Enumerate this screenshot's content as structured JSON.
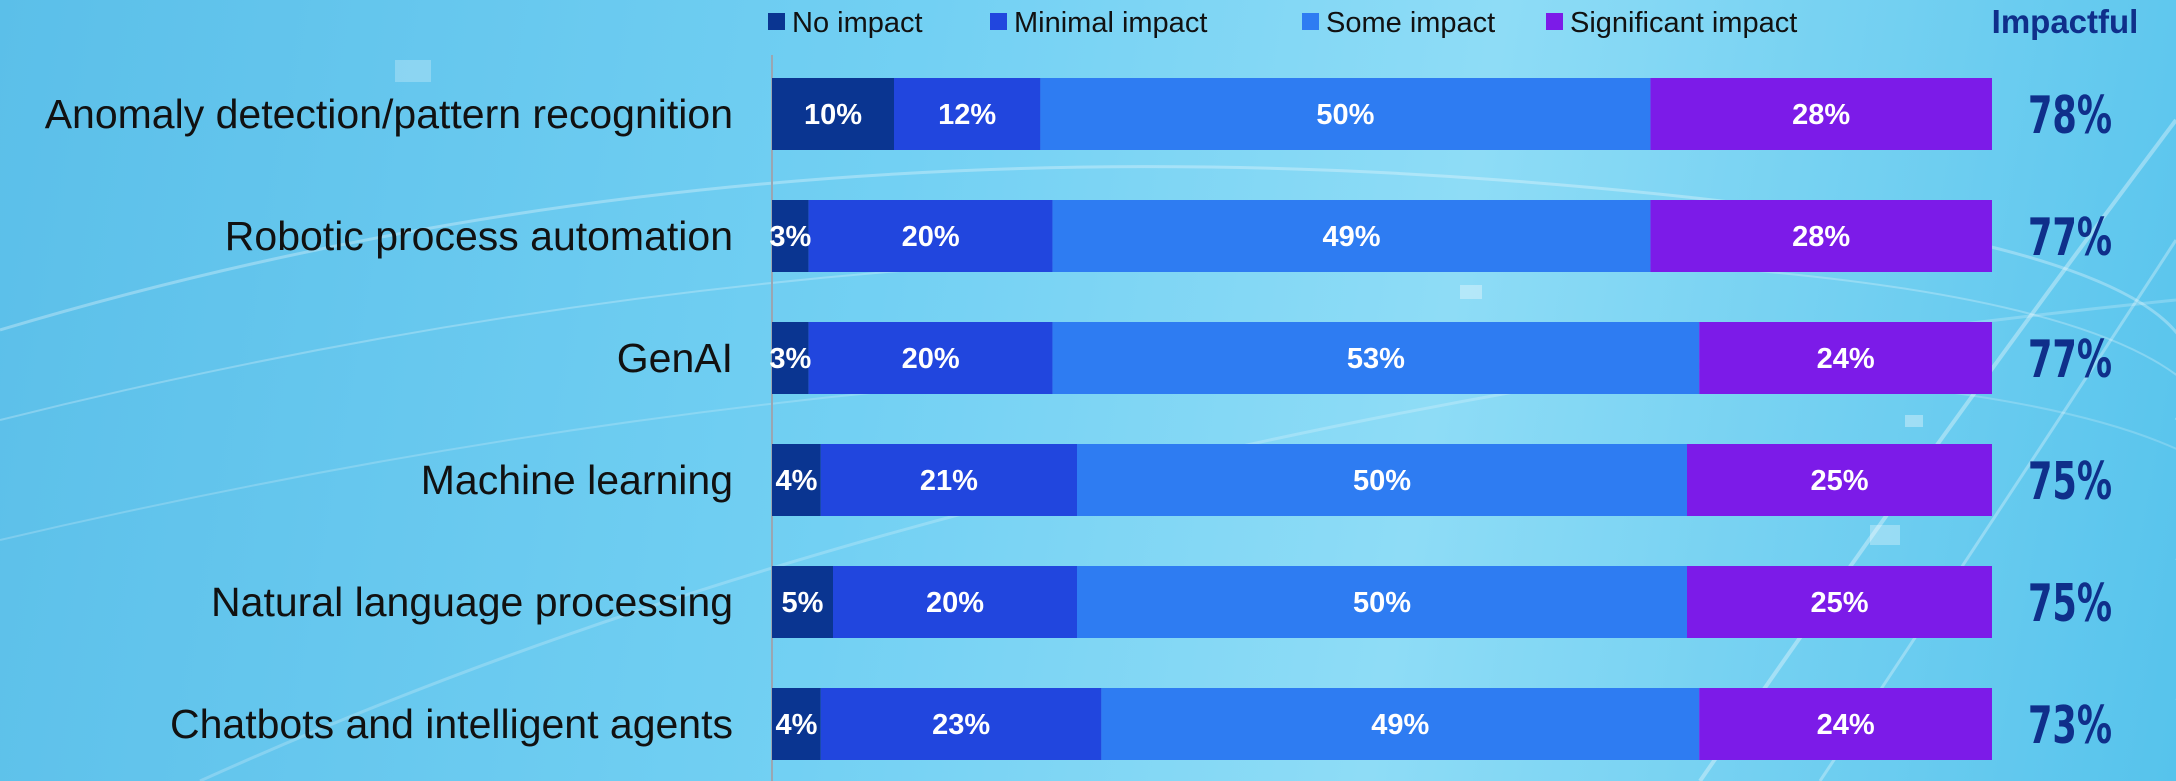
{
  "chart_data": {
    "type": "bar",
    "orientation": "horizontal",
    "stacked": true,
    "categories": [
      "Anomaly detection/pattern recognition",
      "Robotic process automation",
      "GenAI",
      "Machine learning",
      "Natural language processing",
      "Chatbots and intelligent agents"
    ],
    "series": [
      {
        "name": "No impact",
        "color": "#0a3591",
        "values": [
          10,
          3,
          3,
          4,
          5,
          4
        ],
        "labels": [
          "10%",
          "3%",
          "3%",
          "4%",
          "5%",
          "4%"
        ]
      },
      {
        "name": "Minimal impact",
        "color": "#2146de",
        "values": [
          12,
          20,
          20,
          21,
          20,
          23
        ],
        "labels": [
          "12%",
          "20%",
          "20%",
          "21%",
          "20%",
          "23%"
        ]
      },
      {
        "name": "Some impact",
        "color": "#2e7cf2",
        "values": [
          50,
          49,
          53,
          50,
          50,
          49
        ],
        "labels": [
          "50%",
          "49%",
          "53%",
          "50%",
          "50%",
          "49%"
        ]
      },
      {
        "name": "Significant impact",
        "color": "#7c1be8",
        "values": [
          28,
          28,
          24,
          25,
          25,
          24
        ],
        "labels": [
          "28%",
          "28%",
          "24%",
          "25%",
          "25%",
          "24%"
        ]
      }
    ],
    "impactful": {
      "header": "Impactful",
      "labels": [
        "78%",
        "77%",
        "77%",
        "75%",
        "75%",
        "73%"
      ]
    },
    "xlim": [
      0,
      100
    ],
    "grid": false,
    "legend_position": "top"
  }
}
